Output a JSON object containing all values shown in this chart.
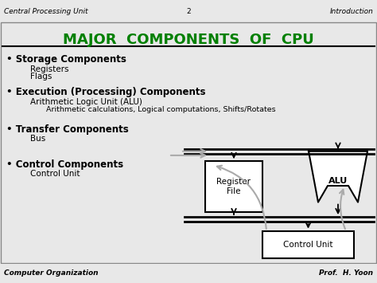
{
  "title": "MAJOR  COMPONENTS  OF  CPU",
  "title_color": "#008000",
  "header_left": "Central Processing Unit",
  "header_center": "2",
  "header_right": "Introduction",
  "footer_left": "Computer Organization",
  "footer_right": "Prof.  H. Yoon",
  "bg_color": "#e8e8e8",
  "slide_bg": "#ffffff",
  "bullet1": "• Storage Components",
  "bullet1_sub": [
    "Registers",
    "Flags"
  ],
  "bullet2": "• Execution (Processing) Components",
  "bullet2_sub": [
    "Arithmetic Logic Unit (ALU)"
  ],
  "bullet2_subsub": [
    "Arithmetic calculations, Logical computations, Shifts/Rotates"
  ],
  "bullet3": "• Transfer Components",
  "bullet3_sub": [
    "Bus"
  ],
  "bullet4": "• Control Components",
  "bullet4_sub": [
    "Control Unit"
  ],
  "gray": "#aaaaaa",
  "black": "#000000",
  "white": "#ffffff"
}
